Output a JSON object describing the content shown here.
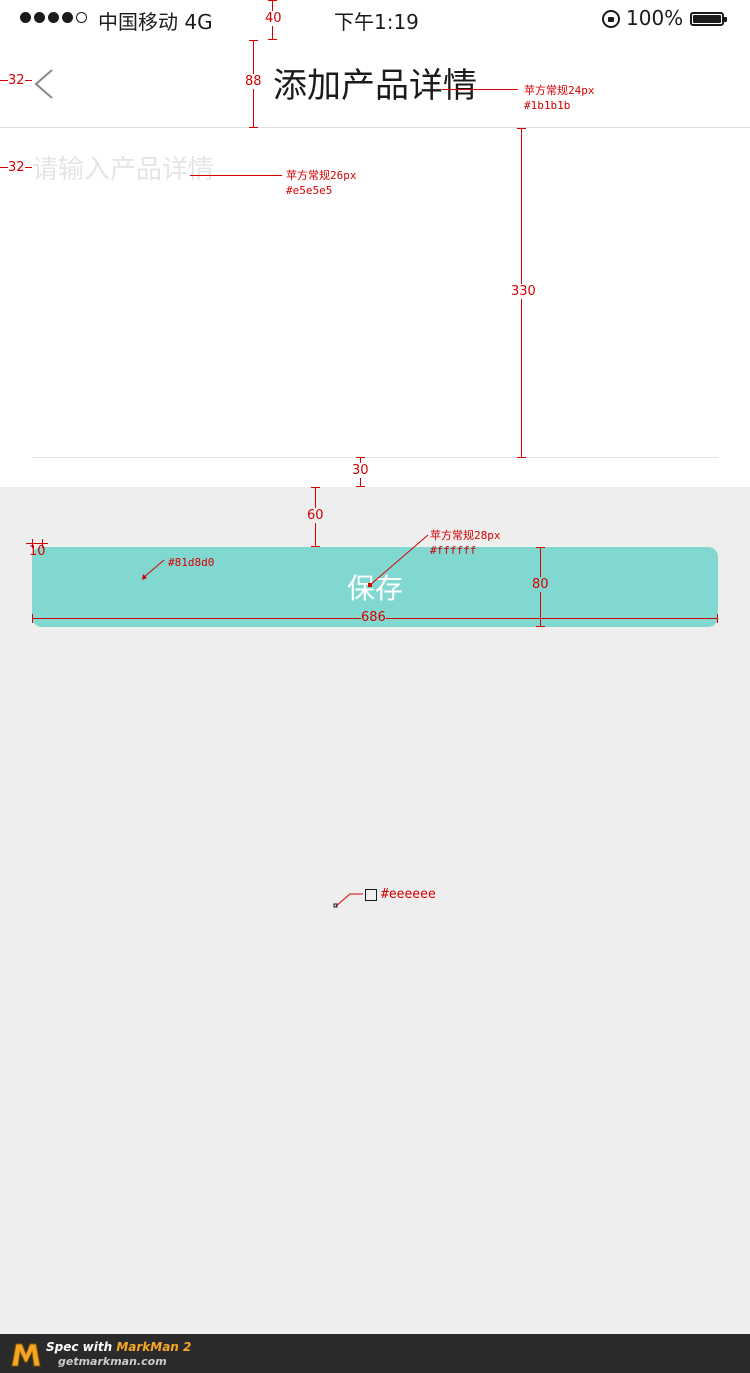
{
  "status_bar": {
    "carrier": "中国移动 4G",
    "time": "下午1:19",
    "battery": "100%"
  },
  "nav": {
    "back_icon": "chevron-left-icon",
    "title": "添加产品详情"
  },
  "form": {
    "detail_placeholder": "请输入产品详情"
  },
  "save_button": {
    "label": "保存",
    "color": "#81d8d0"
  },
  "annotations": {
    "status_height": "40",
    "nav_height": "88",
    "nav_left": "32",
    "title_font": "苹方常规24px",
    "title_color": "#1b1b1b",
    "input_left": "32",
    "input_font": "苹方常规26px",
    "input_color": "#e5e5e5",
    "input_height": "330",
    "bottom_gap": "30",
    "button_gap": "60",
    "radius": "10",
    "button_color": "#81d8d0",
    "button_font": "苹方常规28px",
    "button_text_color": "#ffffff",
    "button_height": "80",
    "button_width": "686",
    "background_color": "#eeeeee"
  },
  "footer": {
    "label_prefix": "Spec with ",
    "label_brand": "MarkMan 2",
    "url": "getmarkman.com"
  }
}
